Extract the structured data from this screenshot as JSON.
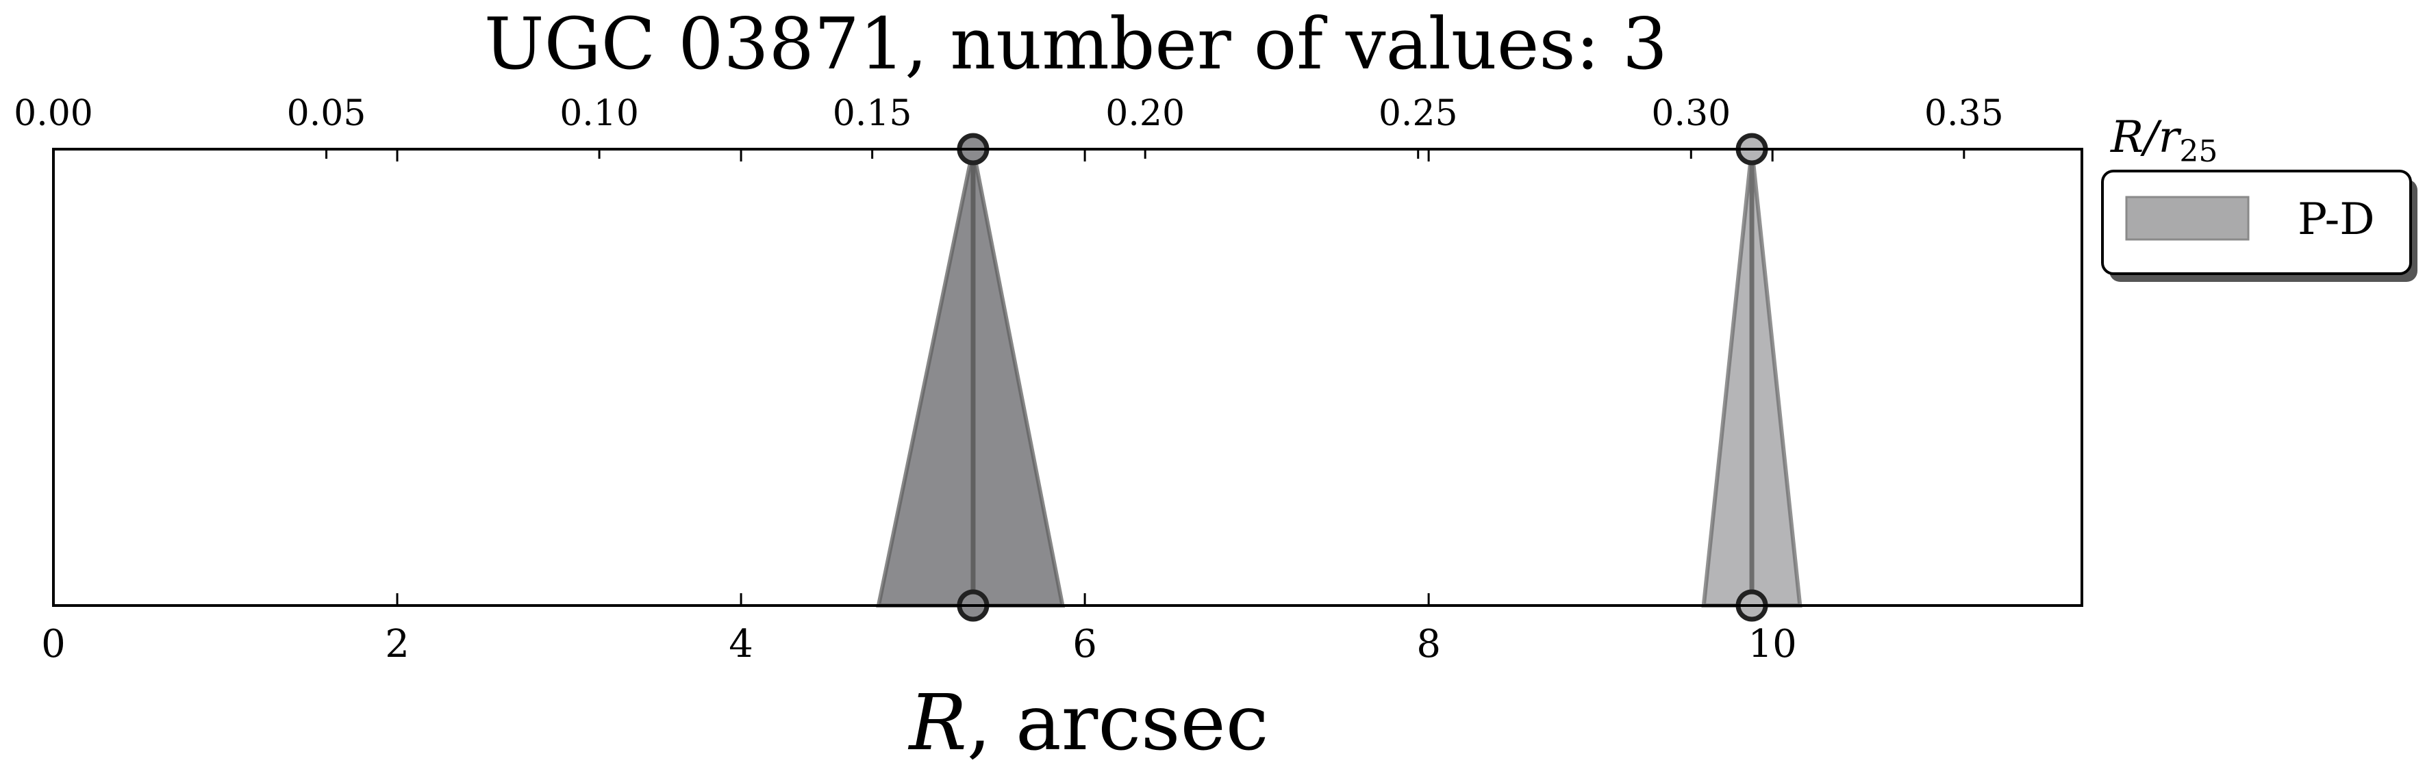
{
  "chart_data": {
    "type": "area",
    "title": "UGC 03871, number of values: 3",
    "xlabel_symbol": "R",
    "xlabel_unit": ", arcsec",
    "xlim": [
      0,
      11.8
    ],
    "xticks": [
      0,
      2,
      4,
      6,
      8,
      10
    ],
    "xtick_labels": [
      "0",
      "2",
      "4",
      "6",
      "8",
      "10"
    ],
    "top_axis": {
      "label_symbol": "R/r",
      "label_subscript": "25",
      "xlim": [
        0,
        0.3716
      ],
      "xticks": [
        0.0,
        0.05,
        0.1,
        0.15,
        0.2,
        0.25,
        0.3,
        0.35
      ],
      "xtick_labels": [
        "0.00",
        "0.05",
        "0.10",
        "0.15",
        "0.20",
        "0.25",
        "0.30",
        "0.35"
      ]
    },
    "legend": {
      "position": "outside-right-top",
      "entries": [
        {
          "label": "P-D",
          "color": "#aaaaab"
        }
      ]
    },
    "series": [
      {
        "center": 5.35,
        "lower": 4.8,
        "upper": 5.87,
        "count": 2,
        "color": "#8b8b8e",
        "line_color": "#606060"
      },
      {
        "center": 9.88,
        "lower": 9.6,
        "upper": 10.16,
        "count": 1,
        "color": "#b5b5b7",
        "line_color": "#6e6e6e"
      }
    ],
    "colors": {
      "axis": "#000000",
      "marker_edge": "#222222"
    }
  }
}
